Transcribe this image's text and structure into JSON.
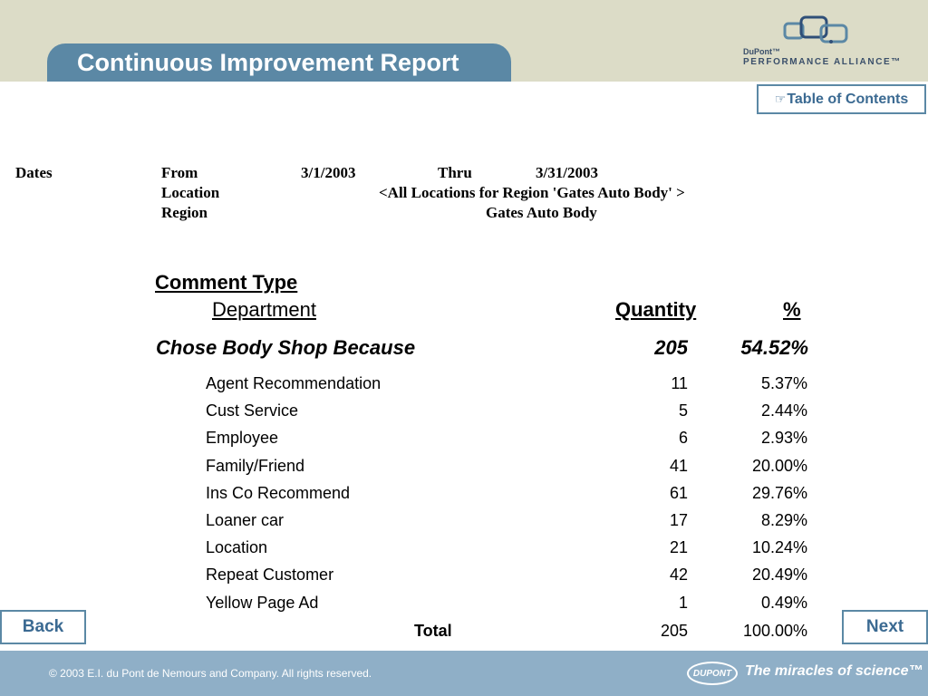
{
  "header": {
    "title": "Continuous Improvement Report",
    "logo": {
      "line1": "DuPont™",
      "line2": "PERFORMANCE ALLIANCE™",
      "icon": "linked-squares-icon"
    }
  },
  "toc_button": {
    "icon": "hand-pointer-icon",
    "label": "Table of Contents"
  },
  "filters": {
    "dates_label": "Dates",
    "from_label": "From",
    "from_value": "3/1/2003",
    "thru_label": "Thru",
    "thru_value": "3/31/2003",
    "location_label": "Location",
    "location_value": "<All Locations for Region 'Gates Auto Body' >",
    "region_label": "Region",
    "region_value": "Gates Auto Body"
  },
  "table": {
    "header_comment_type": "Comment Type",
    "header_department": "Department",
    "header_quantity": "Quantity",
    "header_percent": "%",
    "group": {
      "name": "Chose Body Shop Because",
      "quantity": "205",
      "percent": "54.52%"
    },
    "rows": [
      {
        "label": "Agent Recommendation",
        "quantity": "11",
        "percent": "5.37%"
      },
      {
        "label": "Cust Service",
        "quantity": "5",
        "percent": "2.44%"
      },
      {
        "label": "Employee",
        "quantity": "6",
        "percent": "2.93%"
      },
      {
        "label": "Family/Friend",
        "quantity": "41",
        "percent": "20.00%"
      },
      {
        "label": "Ins Co Recommend",
        "quantity": "61",
        "percent": "29.76%"
      },
      {
        "label": "Loaner car",
        "quantity": "17",
        "percent": "8.29%"
      },
      {
        "label": "Location",
        "quantity": "21",
        "percent": "10.24%"
      },
      {
        "label": "Repeat Customer",
        "quantity": "42",
        "percent": "20.49%"
      },
      {
        "label": "Yellow Page Ad",
        "quantity": "1",
        "percent": "0.49%"
      }
    ],
    "total": {
      "label": "Total",
      "quantity": "205",
      "percent": "100.00%"
    }
  },
  "nav": {
    "back_label": "Back",
    "next_label": "Next"
  },
  "footer": {
    "copyright": "© 2003 E.I. du Pont de Nemours and Company. All rights reserved.",
    "logo_text": "DUPONT",
    "tagline": "The miracles of science™"
  },
  "colors": {
    "header_bg": "#dcdcc7",
    "title_tab": "#5b88a5",
    "footer_bg": "#8fafc7",
    "link": "#3b6a92"
  }
}
